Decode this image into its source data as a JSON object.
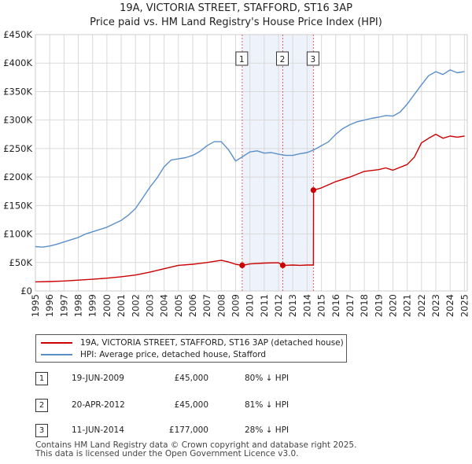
{
  "title_line1": "19A, VICTORIA STREET, STAFFORD, ST16 3AP",
  "title_line2": "Price paid vs. HM Land Registry's House Price Index (HPI)",
  "colors": {
    "property": "#cc0000",
    "hpi": "#5b8fc9",
    "shade": "#eef2fb",
    "grid": "#d9d9d9",
    "vline": "#e06060"
  },
  "chart_data": {
    "type": "line",
    "title": "Price paid vs. HM Land Registry's House Price Index (HPI)",
    "xlabel": "",
    "ylabel": "",
    "xlim": [
      1995,
      2025.2
    ],
    "ylim": [
      0,
      450000
    ],
    "x_ticks": [
      "1995",
      "1996",
      "1997",
      "1998",
      "1999",
      "2000",
      "2001",
      "2002",
      "2003",
      "2004",
      "2005",
      "2006",
      "2007",
      "2008",
      "2009",
      "2010",
      "2011",
      "2012",
      "2013",
      "2014",
      "2015",
      "2016",
      "2017",
      "2018",
      "2019",
      "2020",
      "2021",
      "2022",
      "2023",
      "2024",
      "2025"
    ],
    "y_ticks": [
      {
        "value": 0,
        "label": "£0"
      },
      {
        "value": 50000,
        "label": "£50K"
      },
      {
        "value": 100000,
        "label": "£100K"
      },
      {
        "value": 150000,
        "label": "£150K"
      },
      {
        "value": 200000,
        "label": "£200K"
      },
      {
        "value": 250000,
        "label": "£250K"
      },
      {
        "value": 300000,
        "label": "£300K"
      },
      {
        "value": 350000,
        "label": "£350K"
      },
      {
        "value": 400000,
        "label": "£400K"
      },
      {
        "value": 450000,
        "label": "£450K"
      }
    ],
    "grid": true,
    "shaded_ranges": [
      [
        2009.46,
        2014.44
      ]
    ],
    "series": [
      {
        "name": "19A, VICTORIA STREET, STAFFORD, ST16 3AP (detached house)",
        "color": "#cc0000",
        "x": [
          1995,
          1996,
          1997,
          1998,
          1999,
          2000,
          2001,
          2002,
          2003,
          2004,
          2005,
          2006,
          2007,
          2008,
          2008.5,
          2009.0,
          2009.46,
          2010,
          2011,
          2012,
          2012.3,
          2012.5,
          2013,
          2013.5,
          2014,
          2014.44,
          2014.45,
          2015,
          2016,
          2017,
          2018,
          2019,
          2019.5,
          2020,
          2021,
          2021.5,
          2022,
          2022.5,
          2023,
          2023.5,
          2024,
          2024.5,
          2025
        ],
        "values": [
          16000,
          16500,
          17500,
          19000,
          20500,
          22500,
          25000,
          28000,
          33000,
          39000,
          45000,
          47000,
          50000,
          54000,
          51000,
          47000,
          45000,
          47500,
          49000,
          49500,
          45000,
          45000,
          45500,
          45000,
          45500,
          45500,
          177000,
          181000,
          192000,
          200000,
          210000,
          213000,
          216000,
          212000,
          222000,
          235000,
          260000,
          268000,
          275000,
          268000,
          272000,
          270000,
          272000
        ]
      },
      {
        "name": "HPI: Average price, detached house, Stafford",
        "color": "#5b8fc9",
        "x": [
          1995,
          1995.5,
          1996,
          1996.5,
          1997,
          1997.5,
          1998,
          1998.5,
          1999,
          1999.5,
          2000,
          2000.5,
          2001,
          2001.5,
          2002,
          2002.5,
          2003,
          2003.5,
          2004,
          2004.5,
          2005,
          2005.5,
          2006,
          2006.5,
          2007,
          2007.5,
          2008,
          2008.5,
          2009,
          2009.5,
          2010,
          2010.5,
          2011,
          2011.5,
          2012,
          2012.5,
          2013,
          2013.5,
          2014,
          2014.5,
          2015,
          2015.5,
          2016,
          2016.5,
          2017,
          2017.5,
          2018,
          2018.5,
          2019,
          2019.5,
          2020,
          2020.5,
          2021,
          2021.5,
          2022,
          2022.5,
          2023,
          2023.5,
          2024,
          2024.5,
          2025
        ],
        "values": [
          78000,
          77000,
          79000,
          82000,
          86000,
          90000,
          94000,
          100000,
          104000,
          108000,
          112000,
          118000,
          124000,
          133000,
          145000,
          163000,
          182000,
          198000,
          218000,
          230000,
          232000,
          234000,
          238000,
          245000,
          255000,
          262000,
          262000,
          248000,
          228000,
          236000,
          244000,
          246000,
          242000,
          243000,
          240000,
          238000,
          238000,
          241000,
          243000,
          248000,
          255000,
          262000,
          275000,
          285000,
          292000,
          297000,
          300000,
          303000,
          305000,
          308000,
          307000,
          314000,
          328000,
          345000,
          362000,
          378000,
          385000,
          380000,
          388000,
          383000,
          385000
        ]
      }
    ],
    "transactions": [
      {
        "num": "1",
        "x": 2009.46,
        "price": 45000
      },
      {
        "num": "2",
        "x": 2012.3,
        "price": 45000
      },
      {
        "num": "3",
        "x": 2014.44,
        "price": 177000
      }
    ]
  },
  "legend": {
    "property": "19A, VICTORIA STREET, STAFFORD, ST16 3AP (detached house)",
    "hpi": "HPI: Average price, detached house, Stafford"
  },
  "transactions_table": [
    {
      "num": "1",
      "date": "19-JUN-2009",
      "price": "£45,000",
      "hpi": "80% ↓ HPI"
    },
    {
      "num": "2",
      "date": "20-APR-2012",
      "price": "£45,000",
      "hpi": "81% ↓ HPI"
    },
    {
      "num": "3",
      "date": "11-JUN-2014",
      "price": "£177,000",
      "hpi": "28% ↓ HPI"
    }
  ],
  "footer": {
    "line1": "Contains HM Land Registry data © Crown copyright and database right 2025.",
    "line2": "This data is licensed under the Open Government Licence v3.0."
  }
}
